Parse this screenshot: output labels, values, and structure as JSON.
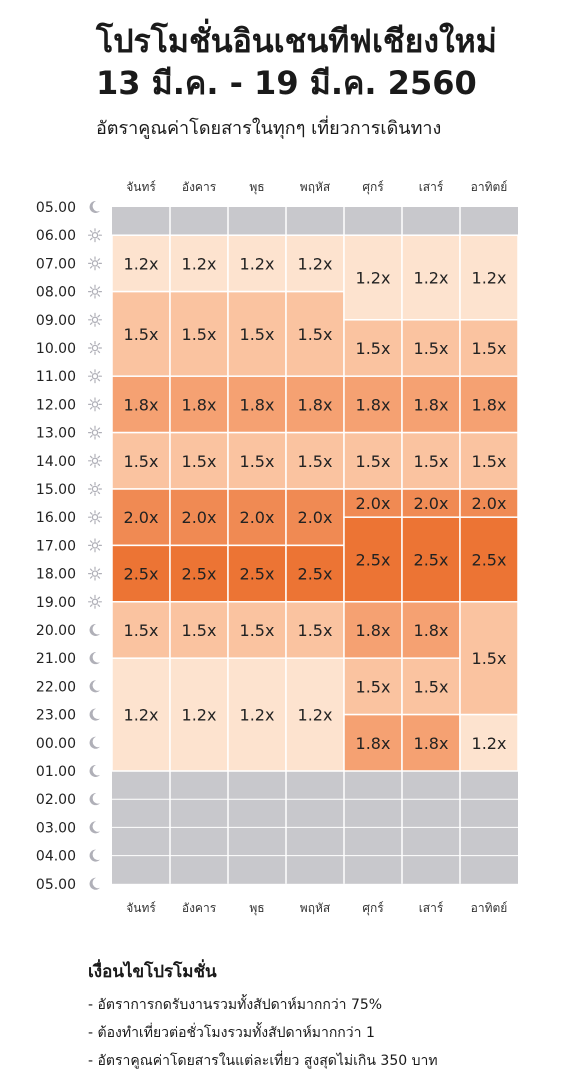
{
  "header": {
    "title_line1": "โปรโมชั่นอินเชนทีฟเชียงใหม่",
    "title_line2": "13 มี.ค. - 19 มี.ค. 2560",
    "subtitle": "อัตราคูณค่าโดยสารในทุกๆ เที่ยวการเดินทาง"
  },
  "chart_data": {
    "type": "heatmap",
    "days": [
      "จันทร์",
      "อังคาร",
      "พุธ",
      "พฤหัส",
      "ศุกร์",
      "เสาร์",
      "อาทิตย์"
    ],
    "times": [
      "05.00",
      "06.00",
      "07.00",
      "08.00",
      "09.00",
      "10.00",
      "11.00",
      "12.00",
      "13.00",
      "14.00",
      "15.00",
      "16.00",
      "17.00",
      "18.00",
      "19.00",
      "20.00",
      "21.00",
      "22.00",
      "23.00",
      "00.00",
      "01.00",
      "02.00",
      "03.00",
      "04.00",
      "05.00"
    ],
    "time_icons": [
      "moon",
      "sun",
      "sun",
      "sun",
      "sun",
      "sun",
      "sun",
      "sun",
      "sun",
      "sun",
      "sun",
      "sun",
      "sun",
      "sun",
      "sun",
      "moon",
      "moon",
      "moon",
      "moon",
      "moon",
      "moon",
      "moon",
      "moon",
      "moon",
      "moon"
    ],
    "blocks": [
      {
        "day": 0,
        "start": "06.00",
        "end": "08.00",
        "value": "1.2x"
      },
      {
        "day": 0,
        "start": "08.00",
        "end": "11.00",
        "value": "1.5x"
      },
      {
        "day": 0,
        "start": "11.00",
        "end": "13.00",
        "value": "1.8x"
      },
      {
        "day": 0,
        "start": "13.00",
        "end": "15.00",
        "value": "1.5x"
      },
      {
        "day": 0,
        "start": "15.00",
        "end": "17.00",
        "value": "2.0x"
      },
      {
        "day": 0,
        "start": "17.00",
        "end": "19.00",
        "value": "2.5x"
      },
      {
        "day": 0,
        "start": "19.00",
        "end": "21.00",
        "value": "1.5x"
      },
      {
        "day": 0,
        "start": "21.00",
        "end": "01.00",
        "value": "1.2x"
      },
      {
        "day": 1,
        "start": "06.00",
        "end": "08.00",
        "value": "1.2x"
      },
      {
        "day": 1,
        "start": "08.00",
        "end": "11.00",
        "value": "1.5x"
      },
      {
        "day": 1,
        "start": "11.00",
        "end": "13.00",
        "value": "1.8x"
      },
      {
        "day": 1,
        "start": "13.00",
        "end": "15.00",
        "value": "1.5x"
      },
      {
        "day": 1,
        "start": "15.00",
        "end": "17.00",
        "value": "2.0x"
      },
      {
        "day": 1,
        "start": "17.00",
        "end": "19.00",
        "value": "2.5x"
      },
      {
        "day": 1,
        "start": "19.00",
        "end": "21.00",
        "value": "1.5x"
      },
      {
        "day": 1,
        "start": "21.00",
        "end": "01.00",
        "value": "1.2x"
      },
      {
        "day": 2,
        "start": "06.00",
        "end": "08.00",
        "value": "1.2x"
      },
      {
        "day": 2,
        "start": "08.00",
        "end": "11.00",
        "value": "1.5x"
      },
      {
        "day": 2,
        "start": "11.00",
        "end": "13.00",
        "value": "1.8x"
      },
      {
        "day": 2,
        "start": "13.00",
        "end": "15.00",
        "value": "1.5x"
      },
      {
        "day": 2,
        "start": "15.00",
        "end": "17.00",
        "value": "2.0x"
      },
      {
        "day": 2,
        "start": "17.00",
        "end": "19.00",
        "value": "2.5x"
      },
      {
        "day": 2,
        "start": "19.00",
        "end": "21.00",
        "value": "1.5x"
      },
      {
        "day": 2,
        "start": "21.00",
        "end": "01.00",
        "value": "1.2x"
      },
      {
        "day": 3,
        "start": "06.00",
        "end": "08.00",
        "value": "1.2x"
      },
      {
        "day": 3,
        "start": "08.00",
        "end": "11.00",
        "value": "1.5x"
      },
      {
        "day": 3,
        "start": "11.00",
        "end": "13.00",
        "value": "1.8x"
      },
      {
        "day": 3,
        "start": "13.00",
        "end": "15.00",
        "value": "1.5x"
      },
      {
        "day": 3,
        "start": "15.00",
        "end": "17.00",
        "value": "2.0x"
      },
      {
        "day": 3,
        "start": "17.00",
        "end": "19.00",
        "value": "2.5x"
      },
      {
        "day": 3,
        "start": "19.00",
        "end": "21.00",
        "value": "1.5x"
      },
      {
        "day": 3,
        "start": "21.00",
        "end": "01.00",
        "value": "1.2x"
      },
      {
        "day": 4,
        "start": "06.00",
        "end": "09.00",
        "value": "1.2x"
      },
      {
        "day": 4,
        "start": "09.00",
        "end": "11.00",
        "value": "1.5x"
      },
      {
        "day": 4,
        "start": "11.00",
        "end": "13.00",
        "value": "1.8x"
      },
      {
        "day": 4,
        "start": "13.00",
        "end": "15.00",
        "value": "1.5x"
      },
      {
        "day": 4,
        "start": "15.00",
        "end": "16.00",
        "value": "2.0x"
      },
      {
        "day": 4,
        "start": "16.00",
        "end": "19.00",
        "value": "2.5x"
      },
      {
        "day": 4,
        "start": "19.00",
        "end": "21.00",
        "value": "1.8x"
      },
      {
        "day": 4,
        "start": "21.00",
        "end": "23.00",
        "value": "1.5x"
      },
      {
        "day": 4,
        "start": "23.00",
        "end": "01.00",
        "value": "1.8x"
      },
      {
        "day": 5,
        "start": "06.00",
        "end": "09.00",
        "value": "1.2x"
      },
      {
        "day": 5,
        "start": "09.00",
        "end": "11.00",
        "value": "1.5x"
      },
      {
        "day": 5,
        "start": "11.00",
        "end": "13.00",
        "value": "1.8x"
      },
      {
        "day": 5,
        "start": "13.00",
        "end": "15.00",
        "value": "1.5x"
      },
      {
        "day": 5,
        "start": "15.00",
        "end": "16.00",
        "value": "2.0x"
      },
      {
        "day": 5,
        "start": "16.00",
        "end": "19.00",
        "value": "2.5x"
      },
      {
        "day": 5,
        "start": "19.00",
        "end": "21.00",
        "value": "1.8x"
      },
      {
        "day": 5,
        "start": "21.00",
        "end": "23.00",
        "value": "1.5x"
      },
      {
        "day": 5,
        "start": "23.00",
        "end": "01.00",
        "value": "1.8x"
      },
      {
        "day": 6,
        "start": "06.00",
        "end": "09.00",
        "value": "1.2x"
      },
      {
        "day": 6,
        "start": "09.00",
        "end": "11.00",
        "value": "1.5x"
      },
      {
        "day": 6,
        "start": "11.00",
        "end": "13.00",
        "value": "1.8x"
      },
      {
        "day": 6,
        "start": "13.00",
        "end": "15.00",
        "value": "1.5x"
      },
      {
        "day": 6,
        "start": "15.00",
        "end": "16.00",
        "value": "2.0x"
      },
      {
        "day": 6,
        "start": "16.00",
        "end": "19.00",
        "value": "2.5x"
      },
      {
        "day": 6,
        "start": "19.00",
        "end": "23.00",
        "value": "1.5x"
      },
      {
        "day": 6,
        "start": "23.00",
        "end": "01.00",
        "value": "1.2x"
      }
    ],
    "inactive_blocks": [
      {
        "start": "05.00",
        "end": "06.00"
      },
      {
        "start": "01.00",
        "end": "05.00"
      }
    ],
    "value_colors": {
      "1.2x": "#fde3cf",
      "1.5x": "#fac3a0",
      "1.8x": "#f5a172",
      "2.0x": "#f08a53",
      "2.5x": "#ec7434",
      "inactive": "#c8c8cc"
    },
    "grid_line_color": "#ffffff",
    "icon_color": "#b0b0b8"
  },
  "conditions": {
    "title": "เงื่อนไขโปรโมชั่น",
    "items": [
      "- อัตราการกดรับงานรวมทั้งสัปดาห์มากกว่า 75%",
      "- ต้องทำเที่ยวต่อชั่วโมงรวมทั้งสัปดาห์มากกว่า 1",
      "- อัตราคูณค่าโดยสารในแต่ละเที่ยว สูงสุดไม่เกิน 350 บาท"
    ]
  }
}
